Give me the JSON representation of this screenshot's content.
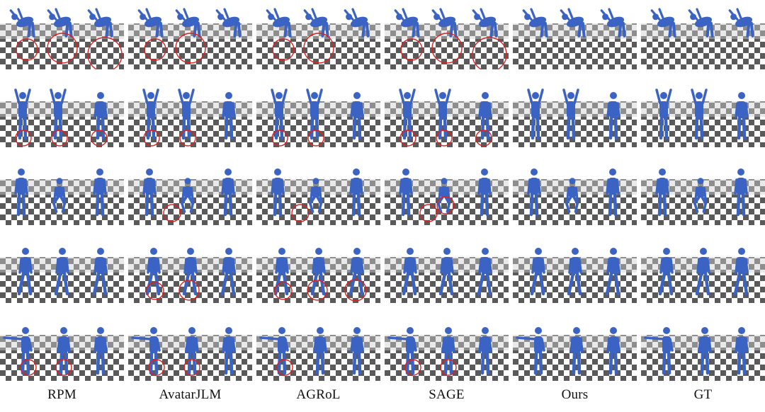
{
  "columns": [
    {
      "id": "rpm",
      "label": "RPM"
    },
    {
      "id": "avatarjlm",
      "label": "AvatarJLM"
    },
    {
      "id": "agrol",
      "label": "AGRoL"
    },
    {
      "id": "sage",
      "label": "SAGE"
    },
    {
      "id": "ours",
      "label": "Ours"
    },
    {
      "id": "gt",
      "label": "GT"
    }
  ],
  "rows": [
    {
      "id": "flip-sequence",
      "error_markers": [
        3,
        2,
        2,
        3,
        0,
        0
      ]
    },
    {
      "id": "arms-raised-standing",
      "error_markers": [
        3,
        2,
        2,
        3,
        0,
        0
      ]
    },
    {
      "id": "crouching-turn",
      "error_markers": [
        0,
        1,
        1,
        2,
        0,
        0
      ]
    },
    {
      "id": "walking",
      "error_markers": [
        0,
        2,
        3,
        0,
        0,
        0
      ]
    },
    {
      "id": "arm-extended-walk",
      "error_markers": [
        2,
        2,
        1,
        2,
        0,
        0
      ]
    }
  ],
  "colors": {
    "body_mesh": "#3a63c4",
    "error_marker": "#e02020",
    "floor_dark": "#5a5a5a",
    "floor_light": "#ffffff",
    "background": "#ffffff"
  }
}
